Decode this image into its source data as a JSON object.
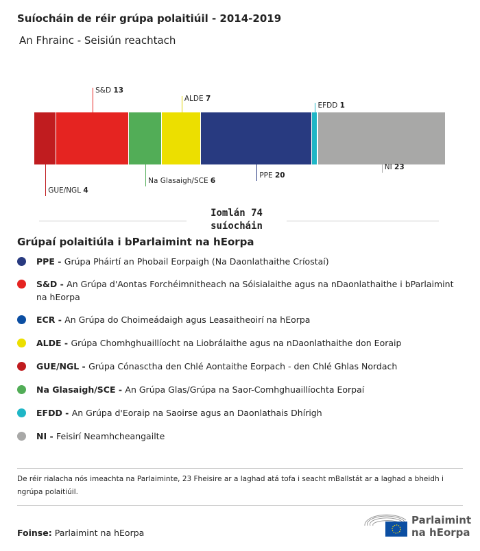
{
  "title": "Suíocháin de réir grúpa polaitiúil - 2014-2019",
  "subtitle": "An Fhrainc - Seisiún reachtach",
  "chart_data": {
    "type": "bar",
    "stacked": true,
    "orientation": "horizontal",
    "categories": [
      "GUE/NGL",
      "S&D",
      "Na Glasaigh/SCE",
      "ALDE",
      "PPE",
      "EFDD",
      "NI"
    ],
    "values": [
      4,
      13,
      6,
      7,
      20,
      1,
      23
    ],
    "colors": [
      "#c01c1f",
      "#e52421",
      "#52ad57",
      "#ecdf00",
      "#283a80",
      "#1fb6c6",
      "#a8a8a7"
    ],
    "label_side": [
      "bottom",
      "top",
      "bottom",
      "top",
      "bottom",
      "top",
      "bottom"
    ],
    "total_label": "Iomlán 74 suíocháin"
  },
  "legend": {
    "heading": "Grúpaí polaitiúla i bParlaimint na hEorpa",
    "items": [
      {
        "abbr": "PPE",
        "desc": "Grúpa Pháirtí an Phobail Eorpaigh (Na Daonlathaithe Críostaí)",
        "color": "#283a80"
      },
      {
        "abbr": "S&D",
        "desc": "An Grúpa d'Aontas Forchéimnitheach na Sóisialaithe agus na nDaonlathaithe i bParlaimint na hEorpa",
        "color": "#e52421"
      },
      {
        "abbr": "ECR",
        "desc": "An Grúpa do Choimeádaigh agus Leasaitheoirí na hEorpa",
        "color": "#0b4ea2"
      },
      {
        "abbr": "ALDE",
        "desc": "Grúpa Chomhghuaillíocht na Liobrálaithe agus na nDaonlathaithe don Eoraip",
        "color": "#ecdf00"
      },
      {
        "abbr": "GUE/NGL",
        "desc": "Grúpa Cónasctha den Chlé Aontaithe Eorpach - den Chlé Ghlas Nordach",
        "color": "#c01c1f"
      },
      {
        "abbr": "Na Glasaigh/SCE",
        "desc": "An Grúpa Glas/Grúpa na Saor-Comhghuaillíochta Eorpaí",
        "color": "#52ad57"
      },
      {
        "abbr": "EFDD",
        "desc": "An Grúpa d'Eoraip na Saoirse agus an Daonlathais Dhírigh",
        "color": "#1fb6c6"
      },
      {
        "abbr": "NI",
        "desc": "Feisirí Neamhcheangailte",
        "color": "#a8a8a7"
      }
    ]
  },
  "note": "De réir rialacha nós imeachta na Parlaiminte, 23 Fheisire ar a laghad atá tofa i seacht mBallstát ar a laghad a bheidh i ngrúpa polaitiúil.",
  "source": {
    "label": "Foinse:",
    "text": "Parlaimint na hEorpa"
  },
  "logo": {
    "line1": "Parlaimint",
    "line2": "na hEorpa"
  }
}
